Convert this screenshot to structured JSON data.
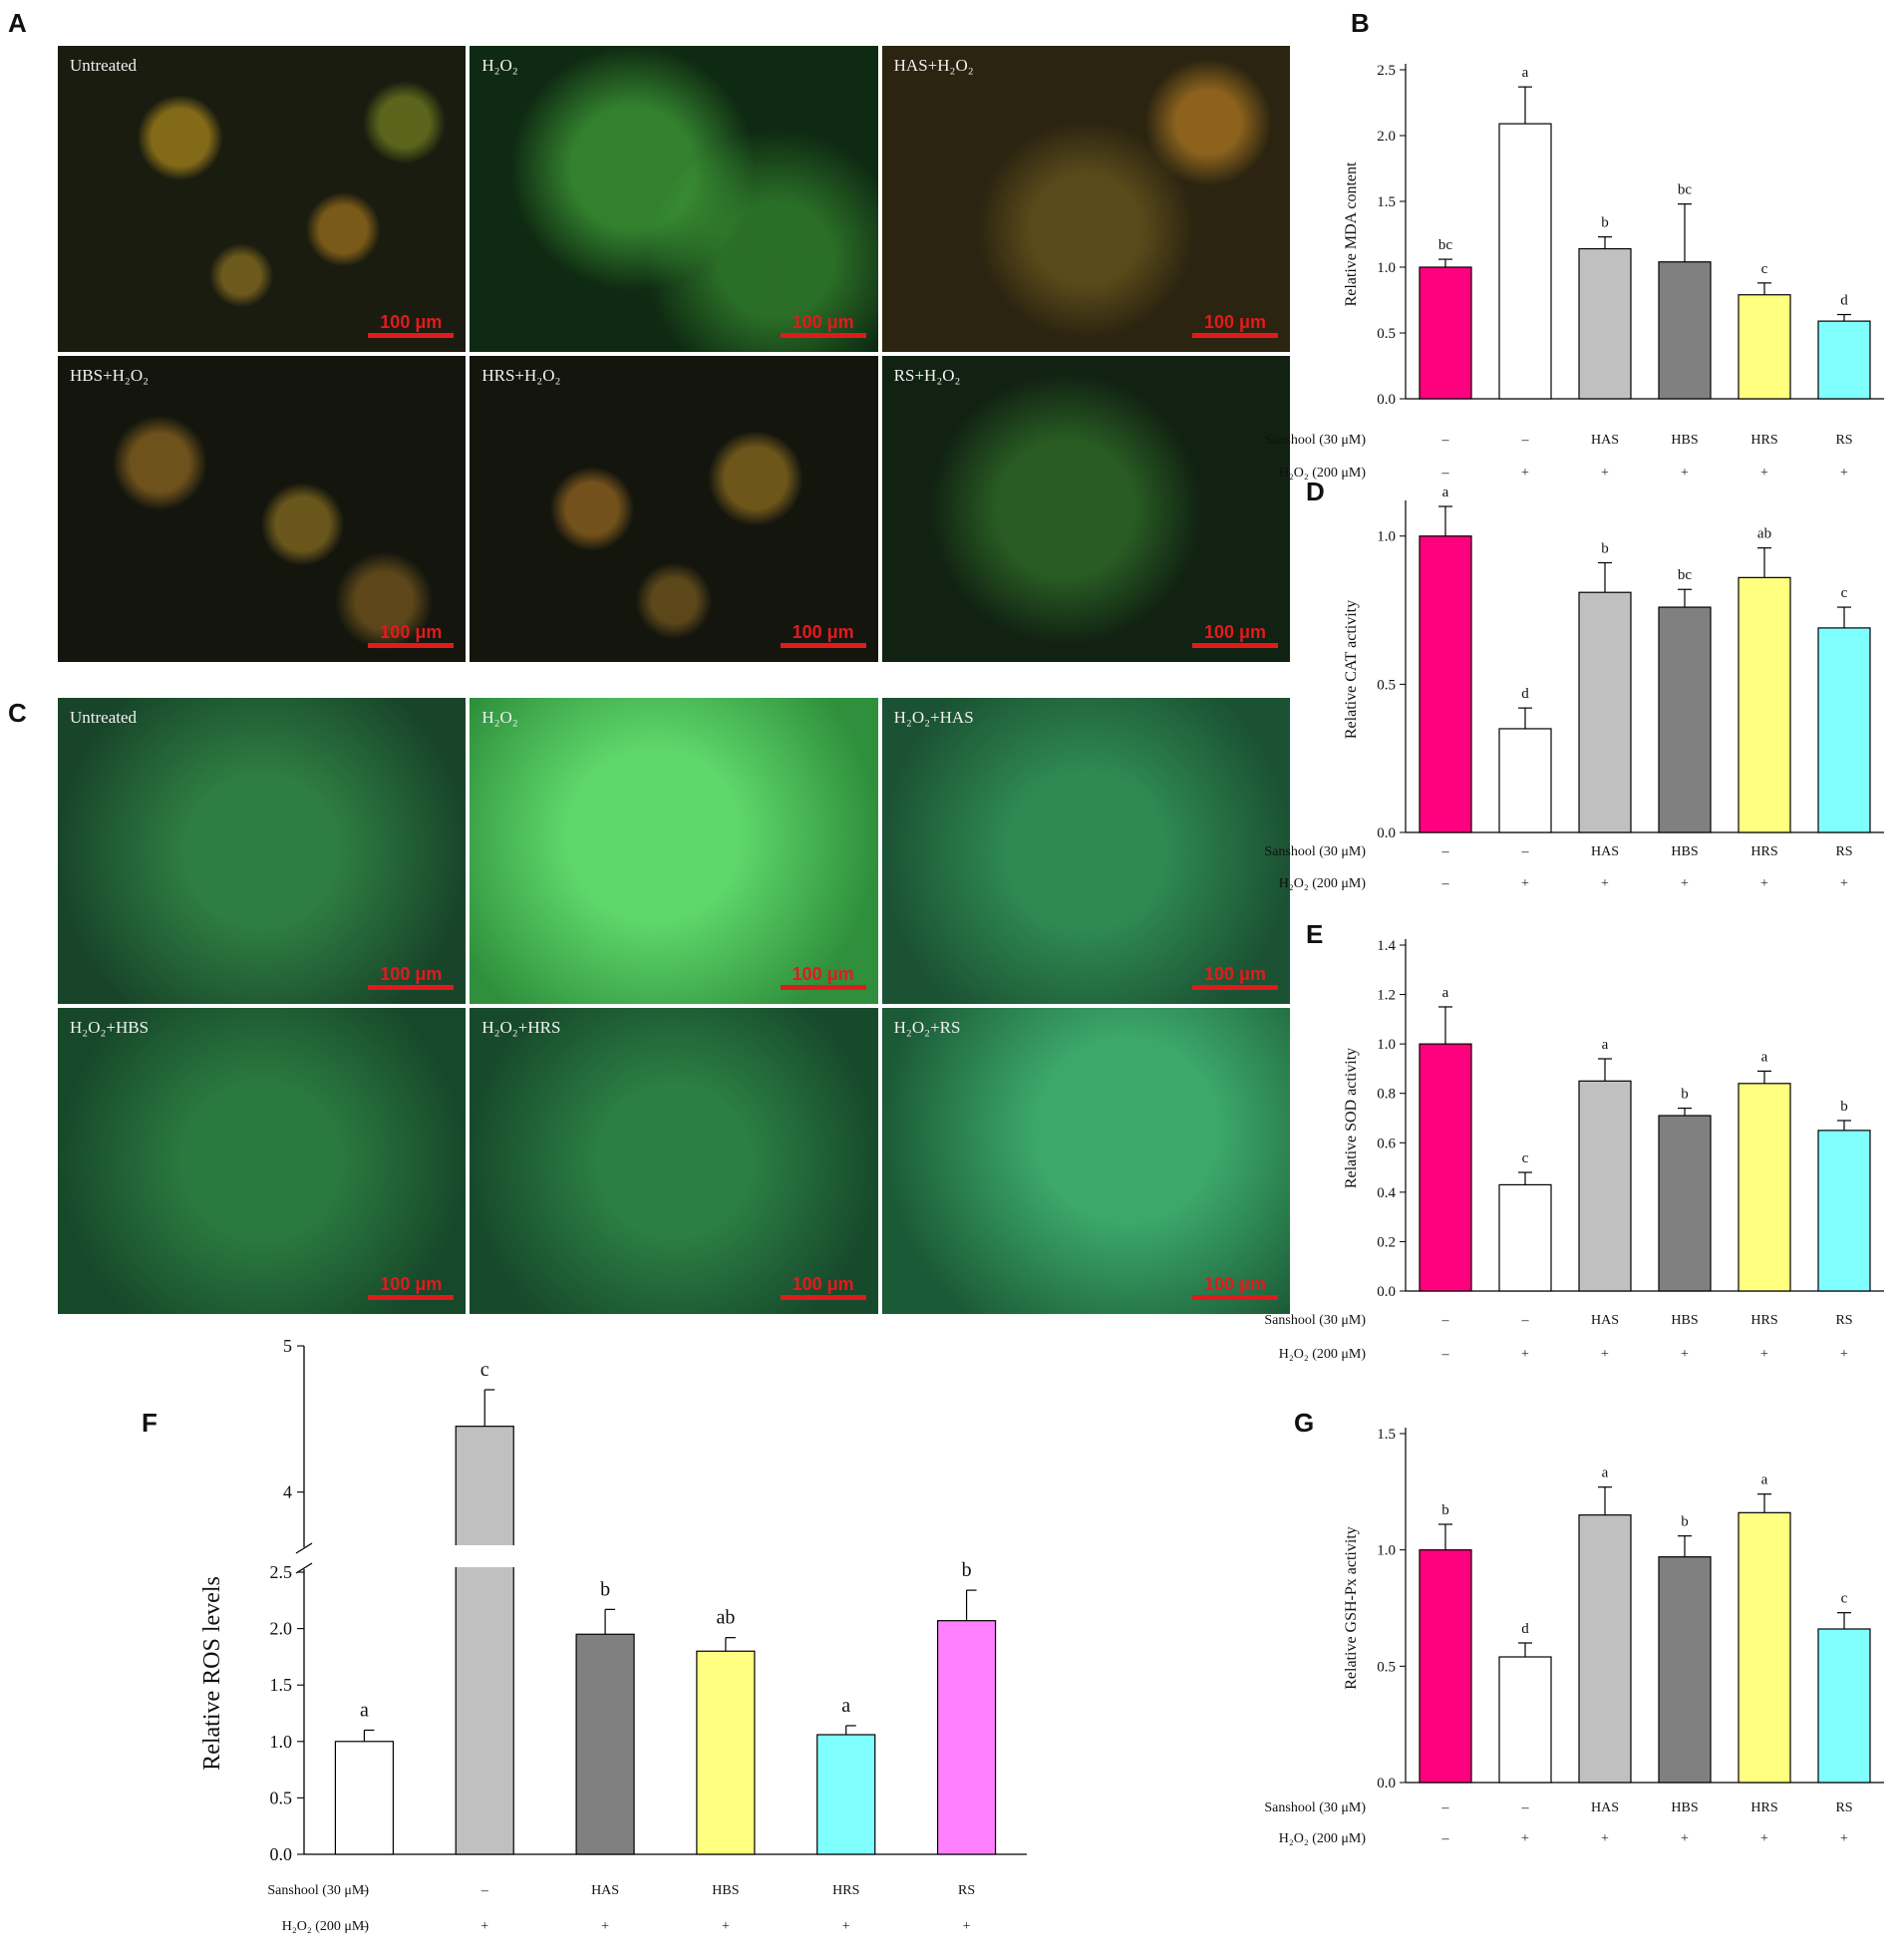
{
  "panel_letters": {
    "A": "A",
    "B": "B",
    "C": "C",
    "D": "D",
    "E": "E",
    "F": "F",
    "G": "G"
  },
  "scale_bar_text": "100 μm",
  "micrographs_A": [
    {
      "label": "Untreated"
    },
    {
      "label": "H₂O₂"
    },
    {
      "label": "HAS+H₂O₂"
    },
    {
      "label": "HBS+H₂O₂"
    },
    {
      "label": "HRS+H₂O₂"
    },
    {
      "label": "RS+H₂O₂"
    }
  ],
  "micrographs_C": [
    {
      "label": "Untreated"
    },
    {
      "label": "H₂O₂"
    },
    {
      "label": "H₂O₂+HAS"
    },
    {
      "label": "H₂O₂+HBS"
    },
    {
      "label": "H₂O₂+HRS"
    },
    {
      "label": "H₂O₂+RS"
    }
  ],
  "chart_data": [
    {
      "panel": "B",
      "type": "bar",
      "ylabel": "Relative MDA content",
      "ylim": [
        0,
        2.5
      ],
      "yticks": [
        "0.0",
        "0.5",
        "1.0",
        "1.5",
        "2.0",
        "2.5"
      ],
      "row_labels": {
        "sanshool": "Sanshool (30 μM)",
        "h2o2": "H₂O₂ (200 μM)"
      },
      "sanshool": [
        "–",
        "–",
        "HAS",
        "HBS",
        "HRS",
        "RS"
      ],
      "h2o2": [
        "–",
        "+",
        "+",
        "+",
        "+",
        "+"
      ],
      "values": [
        1.0,
        2.09,
        1.14,
        1.04,
        0.79,
        0.59
      ],
      "errors": [
        0.06,
        0.28,
        0.09,
        0.44,
        0.09,
        0.05
      ],
      "letters": [
        "bc",
        "a",
        "b",
        "bc",
        "c",
        "d"
      ],
      "colors": [
        "#ff007f",
        "#ffffff",
        "#c0c0c0",
        "#808080",
        "#ffff80",
        "#80ffff"
      ]
    },
    {
      "panel": "D",
      "type": "bar",
      "ylabel": "Relative CAT activity",
      "ylim": [
        0,
        1.1
      ],
      "yticks": [
        "0.0",
        "0.5",
        "1.0"
      ],
      "row_labels": {
        "sanshool": "Sanshool (30 μM)",
        "h2o2": "H₂O₂ (200 μM)"
      },
      "sanshool": [
        "–",
        "–",
        "HAS",
        "HBS",
        "HRS",
        "RS"
      ],
      "h2o2": [
        "–",
        "+",
        "+",
        "+",
        "+",
        "+"
      ],
      "values": [
        1.0,
        0.35,
        0.81,
        0.76,
        0.86,
        0.69
      ],
      "errors": [
        0.1,
        0.07,
        0.1,
        0.06,
        0.1,
        0.07
      ],
      "letters": [
        "a",
        "d",
        "b",
        "bc",
        "ab",
        "c"
      ],
      "colors": [
        "#ff007f",
        "#ffffff",
        "#c0c0c0",
        "#808080",
        "#ffff80",
        "#80ffff"
      ]
    },
    {
      "panel": "E",
      "type": "bar",
      "ylabel": "Relative SOD activity",
      "ylim": [
        0,
        1.4
      ],
      "yticks": [
        "0.0",
        "0.2",
        "0.4",
        "0.6",
        "0.8",
        "1.0",
        "1.2",
        "1.4"
      ],
      "row_labels": {
        "sanshool": "Sanshool (30 μM)",
        "h2o2": "H₂O₂ (200 μM)"
      },
      "sanshool": [
        "–",
        "–",
        "HAS",
        "HBS",
        "HRS",
        "RS"
      ],
      "h2o2": [
        "–",
        "+",
        "+",
        "+",
        "+",
        "+"
      ],
      "values": [
        1.0,
        0.43,
        0.85,
        0.71,
        0.84,
        0.65
      ],
      "errors": [
        0.15,
        0.05,
        0.09,
        0.03,
        0.05,
        0.04
      ],
      "letters": [
        "a",
        "c",
        "a",
        "b",
        "a",
        "b"
      ],
      "colors": [
        "#ff007f",
        "#ffffff",
        "#c0c0c0",
        "#808080",
        "#ffff80",
        "#80ffff"
      ]
    },
    {
      "panel": "F",
      "type": "bar",
      "ylabel": "Relative ROS levels",
      "broken_axis": {
        "lower_range": [
          0,
          2.5
        ],
        "upper_range": [
          3.5,
          5
        ]
      },
      "yticks_lower": [
        "0.0",
        "0.5",
        "1.0",
        "1.5",
        "2.0",
        "2.5"
      ],
      "yticks_upper": [
        "4",
        "5"
      ],
      "row_labels": {
        "sanshool": "Sanshool (30 μM)",
        "h2o2": "H₂O₂ (200 μM)"
      },
      "sanshool": [
        "–",
        "–",
        "HAS",
        "HBS",
        "HRS",
        "RS"
      ],
      "h2o2": [
        "–",
        "+",
        "+",
        "+",
        "+",
        "+"
      ],
      "values": [
        1.0,
        4.45,
        1.95,
        1.8,
        1.06,
        2.07
      ],
      "errors": [
        0.1,
        0.25,
        0.22,
        0.12,
        0.08,
        0.27
      ],
      "letters": [
        "a",
        "c",
        "b",
        "ab",
        "a",
        "b"
      ],
      "colors": [
        "#ffffff",
        "#c0c0c0",
        "#808080",
        "#ffff80",
        "#80ffff",
        "#ff80ff"
      ]
    },
    {
      "panel": "G",
      "type": "bar",
      "ylabel": "Relative GSH-Px activity",
      "ylim": [
        0,
        1.5
      ],
      "yticks": [
        "0.0",
        "0.5",
        "1.0",
        "1.5"
      ],
      "row_labels": {
        "sanshool": "Sanshool (30 μM)",
        "h2o2": "H₂O₂ (200 μM)"
      },
      "sanshool": [
        "–",
        "–",
        "HAS",
        "HBS",
        "HRS",
        "RS"
      ],
      "h2o2": [
        "–",
        "+",
        "+",
        "+",
        "+",
        "+"
      ],
      "values": [
        1.0,
        0.54,
        1.15,
        0.97,
        1.16,
        0.66
      ],
      "errors": [
        0.11,
        0.06,
        0.12,
        0.09,
        0.08,
        0.07
      ],
      "letters": [
        "b",
        "d",
        "a",
        "b",
        "a",
        "c"
      ],
      "colors": [
        "#ff007f",
        "#ffffff",
        "#c0c0c0",
        "#808080",
        "#ffff80",
        "#80ffff"
      ]
    }
  ]
}
